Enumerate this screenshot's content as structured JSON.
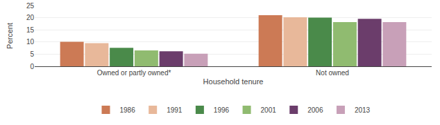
{
  "chart_data": {
    "type": "bar",
    "categories": [
      "Owned or partly owned*",
      "Not owned"
    ],
    "series": [
      {
        "name": "1986",
        "color": "#cc7a55",
        "values": [
          10.1,
          21.0
        ]
      },
      {
        "name": "1991",
        "color": "#e8b89a",
        "values": [
          9.5,
          20.2
        ]
      },
      {
        "name": "1996",
        "color": "#4a8a4a",
        "values": [
          7.6,
          20.0
        ]
      },
      {
        "name": "2001",
        "color": "#90bb70",
        "values": [
          6.5,
          18.2
        ]
      },
      {
        "name": "2006",
        "color": "#6b3d6b",
        "values": [
          6.2,
          19.5
        ]
      },
      {
        "name": "2013",
        "color": "#c8a0b8",
        "values": [
          5.2,
          18.2
        ]
      }
    ],
    "xlabel": "Household tenure",
    "ylabel": "Percent",
    "ylim": [
      0,
      25
    ],
    "yticks": [
      0,
      5,
      10,
      15,
      20,
      25
    ],
    "grid": true,
    "legend": "bottom"
  }
}
